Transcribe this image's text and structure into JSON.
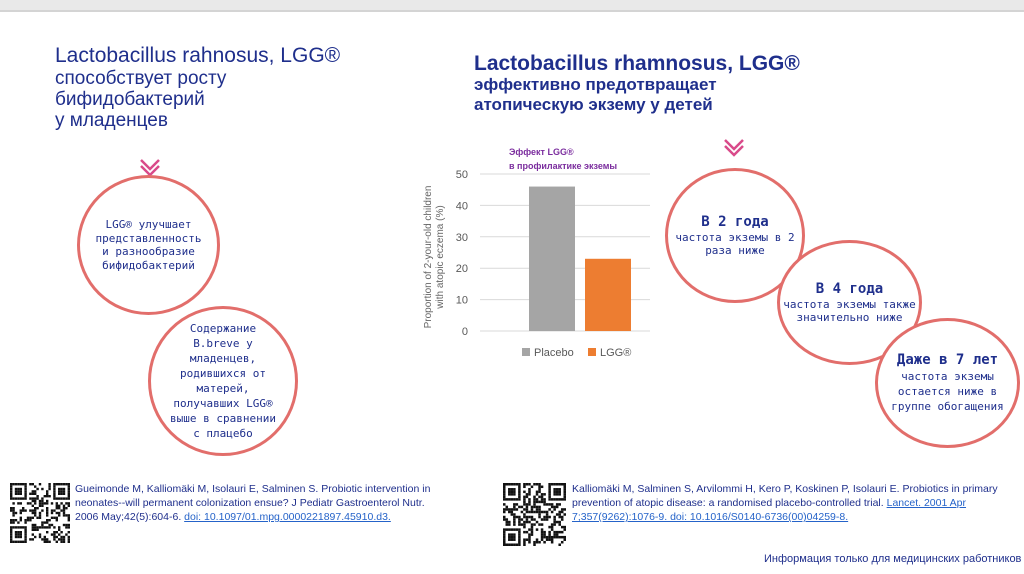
{
  "left_title": {
    "line1": "Lactobacillus rahnosus, LGG®",
    "line2": "способствует росту",
    "line3": "бифидобактерий",
    "line4": "у младенцев"
  },
  "right_title": {
    "line1": "Lactobacillus rhamnosus, LGG®",
    "line2": "эффективно предотвращает",
    "line3": "атопическую экзему у детей"
  },
  "circles": {
    "c1": "LGG® улучшает представленность и разнообразие бифидобактерий",
    "c2": "Содержание B.breve у младенцев, родившихся от матерей, получавших LGG® выше в сравнении с плацебо",
    "c3_big": "В 2 года",
    "c3_small": "частота экземы в 2 раза ниже",
    "c4_big": "В 4 года",
    "c4_small": "частота экземы также значительно ниже",
    "c5_big": "Даже в 7 лет",
    "c5_small": "частота экземы остается ниже в группе обогащения"
  },
  "chart_header": {
    "line1": "Эффект LGG®",
    "line2": "в профилактике экземы"
  },
  "chart_data": {
    "type": "bar",
    "categories": [
      "Placebo",
      "LGG®"
    ],
    "values": [
      46,
      23
    ],
    "colors": [
      "#a5a5a5",
      "#ed7d31"
    ],
    "ylabel_line1": "Proportion of 2-your-old children",
    "ylabel_line2": "with atopic eczema (%)",
    "ylim": [
      0,
      50
    ],
    "yticks": [
      "0",
      "10",
      "20",
      "30",
      "40",
      "50"
    ],
    "legend": [
      "Placebo",
      "LGG®"
    ],
    "legend_position": "bottom",
    "grid": true
  },
  "references": {
    "ref1_text": "Gueimonde M, Kalliomäki M, Isolauri E, Salminen S. Probiotic intervention in neonates--will permanent colonization ensue? J Pediatr Gastroenterol Nutr. 2006 May;42(5):604-6. ",
    "ref1_link": "doi: 10.1097/01.mpg.0000221897.45910.d3.",
    "ref2_text": "Kalliomäki M, Salminen S, Arvilommi H, Kero P, Koskinen P, Isolauri E. Probiotics in primary prevention of atopic disease: a randomised placebo-controlled trial. ",
    "ref2_link": "Lancet. 2001 Apr 7;357(9262):1076-9. doi: 10.1016/S0140-6736(00)04259-8."
  },
  "footer": "Информация только для медицинских работников",
  "accent": "#e26e6b",
  "text_color": "#1f2f8c"
}
